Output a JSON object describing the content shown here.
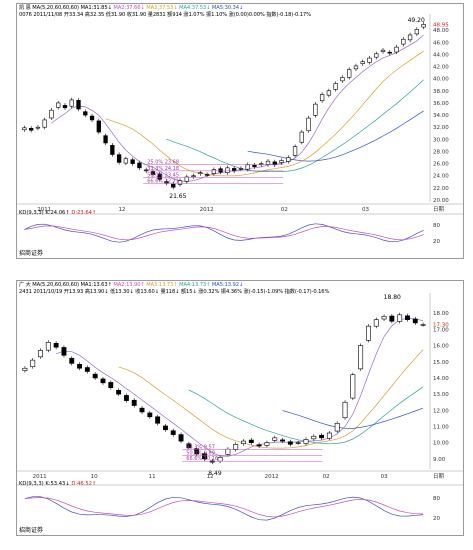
{
  "top": {
    "name": "凯 恩",
    "ma_label": "MA(5,20,60,60,60)",
    "ma5_value": "MA1:31.85↓",
    "ma10_value": "MA2:37.66↓",
    "ma20_value": "MA3:37.53↓",
    "ma30_value": "MA4:37.53↓",
    "ma60_value": "MA5:30.34↓",
    "row2": "0076 2011/11/08 开33.34 高32.35 低31.90 收31.90 量2831 额914 涨1.07% 振1.10% 涨(0.00)0.00% 指数(-0.18)-0.17%",
    "xlabels": [
      "2011",
      "12",
      "2012",
      "02",
      "03"
    ],
    "xlabels_y": [
      "48.00",
      "46.00",
      "44.00",
      "42.00",
      "40.00",
      "38.00",
      "36.00",
      "34.00",
      "32.00",
      "30.00",
      "28.00",
      "26.00",
      "24.00",
      "22.00",
      "20.00"
    ],
    "high_label": "49.20",
    "low_label": "21.65",
    "fib_labels": [
      "66.6% 22.71",
      "50.0% 23.45",
      "33.3% 24.18",
      "25.0% 23.68"
    ],
    "right_price": "48.95",
    "corner_label": "日期",
    "kdj_label": "KD(9,3,3)",
    "kdj_k": "K:24.06↑",
    "kdj_d": "D:23.64↑",
    "kdj_ticks": [
      "80",
      "20"
    ],
    "footer": "招商证券"
  },
  "bottom": {
    "name": "广 大",
    "ma_label": "MA(5,20,60,60,60)",
    "ma5_value": "MA1:13.63↑",
    "ma10_value": "MA2:13.90↑",
    "ma20_value": "MA3:13.73↑",
    "ma30_value": "MA4:13.73↑",
    "ma60_value": "MA5:13.92↓",
    "row2": "2431 2011/10/19 开13.93 高13.90↓ 低13.30↓ 收13.60↓ 量118↓ 额15↓ 涨0.32% 振4.36% 涨(-0.15)-1.09% 指数(-0.17)-0.16%",
    "xlabels": [
      "2011",
      "10",
      "11",
      "12",
      "2012",
      "02",
      "03"
    ],
    "xlabels_y": [
      "18.00",
      "17.00",
      "16.00",
      "15.00",
      "14.00",
      "13.00",
      "12.00",
      "11.00",
      "10.00",
      "9.00"
    ],
    "high_label": "18.80",
    "low_label": "8.49",
    "fib_labels": [
      "66.6% 10.16",
      "50.0% 9.89",
      "33.3% 9.57"
    ],
    "right_price": "17.30",
    "corner_label": "日期",
    "kdj_label": "KD(9,3,3)",
    "kdj_k": "K:53.43↓",
    "kdj_d": "D:46.52↑",
    "kdj_ticks": [
      "80",
      "20"
    ],
    "footer": "招商证券"
  },
  "chart_data": [
    {
      "type": "candlestick",
      "title": "凯 恩",
      "ylim": [
        20,
        50
      ],
      "closes": [
        31.9,
        31.5,
        32.0,
        33.2,
        34.8,
        36.0,
        35.2,
        36.5,
        35.0,
        34.0,
        33.2,
        31.2,
        29.4,
        27.5,
        26.2,
        26.8,
        26.0,
        25.3,
        24.8,
        24.2,
        23.4,
        22.8,
        22.1,
        23.2,
        23.8,
        24.0,
        24.5,
        24.2,
        25.0,
        24.6,
        25.3,
        24.8,
        25.2,
        25.8,
        25.5,
        26.0,
        26.4,
        25.8,
        26.5,
        27.0,
        28.8,
        31.2,
        33.5,
        35.8,
        37.4,
        38.0,
        39.2,
        40.2,
        41.5,
        42.1,
        42.8,
        43.4,
        44.1,
        44.7,
        44.2,
        45.2,
        46.5,
        47.2,
        48.1,
        48.95
      ],
      "high": 49.2,
      "low": 21.65
    },
    {
      "type": "candlestick",
      "title": "广 大",
      "ylim": [
        8.5,
        19
      ],
      "closes": [
        14.6,
        15.1,
        15.7,
        16.2,
        15.9,
        15.4,
        14.9,
        14.6,
        14.4,
        14.0,
        13.7,
        13.4,
        13.0,
        12.6,
        12.3,
        11.9,
        11.6,
        11.2,
        10.8,
        10.5,
        10.1,
        9.7,
        9.3,
        9.0,
        8.8,
        9.1,
        9.6,
        9.9,
        10.1,
        10.0,
        9.8,
        10.0,
        10.3,
        10.1,
        9.9,
        10.0,
        10.2,
        10.4,
        10.3,
        10.6,
        11.2,
        12.5,
        14.2,
        16.0,
        17.2,
        17.6,
        17.8,
        17.5,
        17.9,
        17.6,
        17.4,
        17.3
      ],
      "high": 18.8,
      "low": 8.49
    }
  ]
}
